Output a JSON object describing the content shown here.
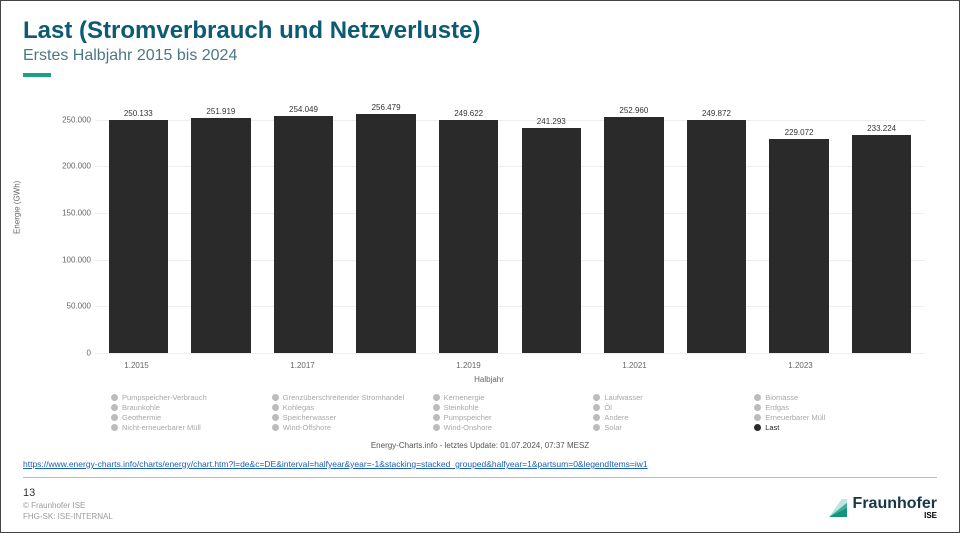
{
  "header": {
    "title": "Last (Stromverbrauch und Netzverluste)",
    "subtitle": "Erstes Halbjahr 2015 bis 2024",
    "accent_color": "#1aa187"
  },
  "chart": {
    "type": "bar",
    "y_label": "Energie (GWh)",
    "x_label": "Halbjahr",
    "ylim_max": 250000,
    "ytick_step": 50000,
    "yticks": [
      "0",
      "50.000",
      "100.000",
      "150.000",
      "200.000",
      "250.000"
    ],
    "categories": [
      "1.2015",
      "",
      "1.2017",
      "",
      "1.2019",
      "",
      "1.2021",
      "",
      "1.2023",
      ""
    ],
    "values": [
      250133,
      251919,
      254049,
      256479,
      249622,
      241293,
      252960,
      249872,
      229072,
      233224
    ],
    "value_labels": [
      "250.133",
      "251.919",
      "254.049",
      "256.479",
      "249.622",
      "241.293",
      "252.960",
      "249.872",
      "229.072",
      "233.224"
    ],
    "bar_color": "#2a2a2a",
    "grid_color": "#eeeeee",
    "axis_color": "#bbbbbb",
    "max_for_scale": 270000
  },
  "legend": {
    "inactive_color": "#bcbcbc",
    "active_color": "#2a2a2a",
    "items": [
      {
        "label": "Pumpspeicher-Verbrauch",
        "active": false
      },
      {
        "label": "Braunkohle",
        "active": false
      },
      {
        "label": "Geothermie",
        "active": false
      },
      {
        "label": "Nicht-erneuerbarer Müll",
        "active": false
      },
      {
        "label": "Grenzüberschreitender Stromhandel",
        "active": false
      },
      {
        "label": "Kohlegas",
        "active": false
      },
      {
        "label": "Speicherwasser",
        "active": false
      },
      {
        "label": "Wind-Offshore",
        "active": false
      },
      {
        "label": "Kernenergie",
        "active": false
      },
      {
        "label": "Steinkohle",
        "active": false
      },
      {
        "label": "Pumpspeicher",
        "active": false
      },
      {
        "label": "Wind-Onshore",
        "active": false
      },
      {
        "label": "Laufwasser",
        "active": false
      },
      {
        "label": "Öl",
        "active": false
      },
      {
        "label": "Andere",
        "active": false
      },
      {
        "label": "Solar",
        "active": false
      },
      {
        "label": "Biomasse",
        "active": false
      },
      {
        "label": "Erdgas",
        "active": false
      },
      {
        "label": "Erneuerbarer Müll",
        "active": false
      },
      {
        "label": "Last",
        "active": true
      }
    ]
  },
  "notes": {
    "update": "Energy-Charts.info - letztes Update: 01.07.2024, 07:37 MESZ",
    "source_url": "https://www.energy-charts.info/charts/energy/chart.htm?l=de&c=DE&interval=halfyear&year=-1&stacking=stacked_grouped&halfyear=1&partsum=0&legendItems=iw1"
  },
  "footer": {
    "page": "13",
    "copyright": "© Fraunhofer ISE",
    "classification": "FHG-SK: ISE-INTERNAL"
  },
  "brand": {
    "name": "Fraunhofer",
    "sub": "ISE",
    "mark_color": "#1aa187",
    "text_color": "#173747"
  }
}
